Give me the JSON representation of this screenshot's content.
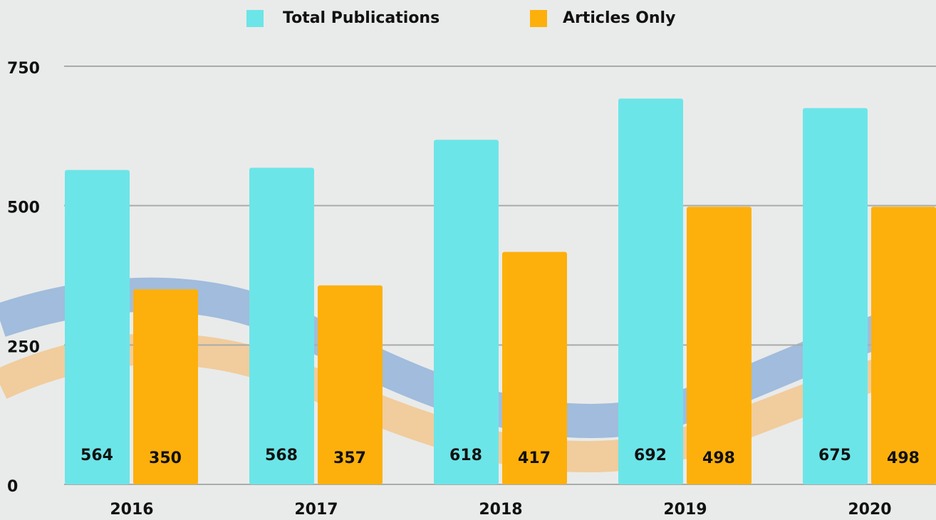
{
  "chart_data": {
    "type": "bar",
    "categories": [
      "2016",
      "2017",
      "2018",
      "2019",
      "2020"
    ],
    "series": [
      {
        "name": "Total Publications",
        "color": "#6ce5e8",
        "values": [
          564,
          568,
          618,
          692,
          675
        ]
      },
      {
        "name": "Articles Only",
        "color": "#fdb00b",
        "values": [
          350,
          357,
          417,
          498,
          498
        ]
      }
    ],
    "ylim": [
      0,
      750
    ],
    "yticks": [
      0,
      250,
      500,
      750
    ],
    "grid": true
  }
}
